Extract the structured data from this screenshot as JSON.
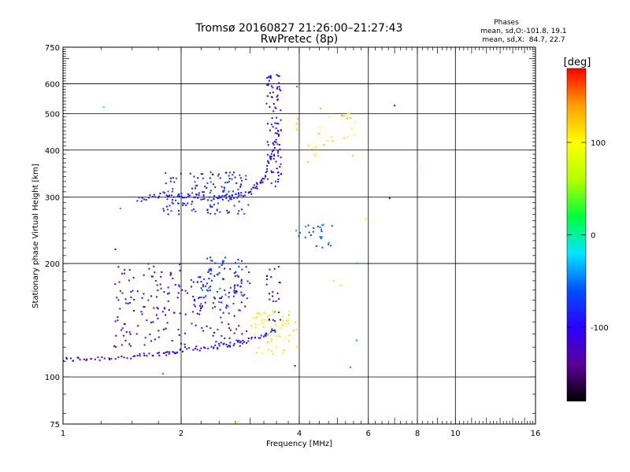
{
  "chart_data": {
    "type": "scatter",
    "title": "Tromsø 20160827 21:26:00–21:27:43",
    "subtitle": "RwPretec (8p)",
    "xlabel": "Frequency [MHz]",
    "ylabel": "Stationary phase Virtual Height [km]",
    "x_scale": "log2",
    "y_scale": "log",
    "xlim": [
      1,
      16
    ],
    "ylim": [
      75,
      750
    ],
    "x_ticks": [
      1,
      2,
      4,
      6,
      8,
      10,
      16
    ],
    "y_ticks": [
      75,
      100,
      200,
      300,
      400,
      500,
      600,
      750
    ],
    "grid": true,
    "phase_box": {
      "title": "Phases",
      "line_o": "mean, sd,O:-101.8, 19.1",
      "line_x": "mean, sd,X:  84.7, 22.7"
    },
    "colorbar": {
      "label": "[deg]",
      "range": [
        -180,
        180
      ],
      "ticks": [
        -100,
        0,
        100
      ],
      "colors": [
        "#000000",
        "#5b0098",
        "#2a00ff",
        "#0050ff",
        "#00e6ff",
        "#00ff3c",
        "#b4ff00",
        "#ffff00",
        "#ffa000",
        "#ff0000"
      ]
    },
    "clusters": [
      {
        "name": "E-trace low",
        "type": "curve",
        "x": [
          1.0,
          1.2,
          1.5,
          1.8,
          2.0,
          2.4,
          2.8,
          3.2,
          3.5
        ],
        "y": [
          111,
          112,
          113,
          115,
          118,
          120,
          123,
          128,
          134
        ],
        "phase": [
          -110,
          -115,
          -112,
          -108,
          -105,
          -100,
          -95,
          -90,
          -85
        ]
      },
      {
        "name": "E cloud",
        "type": "cloud",
        "x_range": [
          1.35,
          3.0
        ],
        "y_range": [
          120,
          200
        ],
        "phase": -100,
        "count": 220
      },
      {
        "name": "E upper column",
        "type": "cloud",
        "x_range": [
          2.2,
          2.9
        ],
        "y_range": [
          150,
          210
        ],
        "phase": -70,
        "count": 70
      },
      {
        "name": "E column 3.5",
        "type": "cloud",
        "x_range": [
          3.3,
          3.6
        ],
        "y_range": [
          140,
          200
        ],
        "phase": -110,
        "count": 25
      },
      {
        "name": "X-mode E",
        "type": "cloud",
        "x_range": [
          3.0,
          3.95
        ],
        "y_range": [
          115,
          150
        ],
        "phase": 100,
        "count": 60
      },
      {
        "name": "F low trace",
        "type": "curve",
        "x": [
          1.55,
          1.8,
          2.1,
          2.4,
          2.7,
          3.0,
          3.2,
          3.4,
          3.55
        ],
        "y": [
          295,
          305,
          302,
          298,
          300,
          310,
          330,
          380,
          450
        ],
        "phase": [
          -100,
          -100,
          -95,
          -95,
          -90,
          -90,
          -95,
          -100,
          -100
        ]
      },
      {
        "name": "F cloud",
        "type": "cloud",
        "x_range": [
          1.8,
          3.0
        ],
        "y_range": [
          270,
          350
        ],
        "phase": -80,
        "count": 140
      },
      {
        "name": "F cusp",
        "type": "cloud",
        "x_range": [
          3.3,
          3.6
        ],
        "y_range": [
          320,
          640
        ],
        "phase": -100,
        "count": 90
      },
      {
        "name": "X-mode F",
        "type": "cloud",
        "x_range": [
          3.8,
          5.6
        ],
        "y_range": [
          360,
          520
        ],
        "phase": 120,
        "count": 30
      },
      {
        "name": "mid traces",
        "type": "cloud",
        "x_range": [
          3.9,
          4.9
        ],
        "y_range": [
          220,
          255
        ],
        "phase": -60,
        "count": 25
      }
    ],
    "outliers": [
      {
        "x": 1.27,
        "y": 520,
        "phase": -20
      },
      {
        "x": 7.0,
        "y": 525,
        "phase": -100
      },
      {
        "x": 6.8,
        "y": 298,
        "phase": -130
      },
      {
        "x": 8.0,
        "y": 360,
        "phase": 30
      },
      {
        "x": 5.9,
        "y": 262,
        "phase": 110
      },
      {
        "x": 5.6,
        "y": 200,
        "phase": -40
      },
      {
        "x": 5.6,
        "y": 125,
        "phase": -40
      },
      {
        "x": 5.4,
        "y": 106,
        "phase": -40
      },
      {
        "x": 3.9,
        "y": 107,
        "phase": -110
      },
      {
        "x": 3.95,
        "y": 590,
        "phase": -50
      },
      {
        "x": 1.4,
        "y": 280,
        "phase": -40
      },
      {
        "x": 1.36,
        "y": 218,
        "phase": -110
      },
      {
        "x": 1.8,
        "y": 102,
        "phase": 170
      },
      {
        "x": 2.8,
        "y": 76,
        "phase": 110
      },
      {
        "x": 4.9,
        "y": 180,
        "phase": 110
      },
      {
        "x": 5.1,
        "y": 175,
        "phase": 110
      }
    ]
  }
}
